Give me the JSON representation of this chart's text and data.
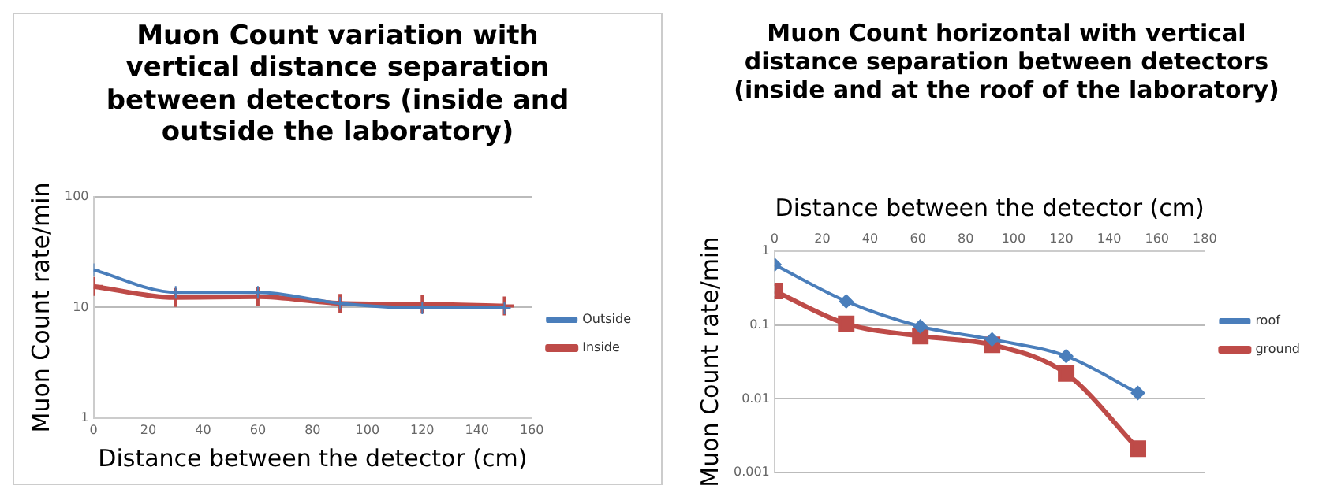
{
  "chart_data": [
    {
      "type": "line",
      "title": "Muon Count variation with vertical distance separation between detectors (inside and outside the laboratory)",
      "xlabel": "Distance between the detector (cm)",
      "ylabel": "Muon Count rate/min",
      "x": [
        0,
        30,
        60,
        90,
        120,
        150
      ],
      "log": "y",
      "xlim": [
        0,
        160
      ],
      "xticks": [
        0,
        20,
        40,
        60,
        80,
        100,
        120,
        140,
        160
      ],
      "ylim": [
        1,
        100
      ],
      "yticks": [
        1,
        10,
        100
      ],
      "grid": "y",
      "legend": "right",
      "marker": "cross",
      "series": [
        {
          "name": "Outside",
          "color": "#4a7ebb",
          "values": [
            21.9,
            13.7,
            13.7,
            10.9,
            9.9,
            9.9
          ]
        },
        {
          "name": "Inside",
          "color": "#be4b48",
          "values": [
            15.5,
            12.3,
            12.5,
            10.9,
            10.7,
            10.3
          ]
        }
      ]
    },
    {
      "type": "line",
      "title": "Muon Count horizontal with vertical distance separation between detectors (inside and at the roof of the laboratory)",
      "xlabel": "Distance between the detector (cm)",
      "ylabel": "Muon Count rate/min",
      "x": [
        0,
        30,
        61,
        91,
        122,
        152
      ],
      "log": "y",
      "xlim": [
        0,
        180
      ],
      "xticks": [
        0,
        20,
        40,
        60,
        80,
        100,
        120,
        140,
        160,
        180
      ],
      "ylim": [
        0.001,
        1
      ],
      "yticks": [
        0.001,
        0.01,
        0.1,
        1
      ],
      "grid": "y",
      "legend": "right",
      "series": [
        {
          "name": "roof",
          "color": "#4a7ebb",
          "marker": "diamond",
          "values": [
            0.66,
            0.21,
            0.096,
            0.064,
            0.038,
            0.012
          ]
        },
        {
          "name": "ground",
          "color": "#be4b48",
          "marker": "square",
          "values": [
            0.29,
            0.104,
            0.071,
            0.054,
            0.022,
            0.0021
          ]
        }
      ]
    }
  ]
}
